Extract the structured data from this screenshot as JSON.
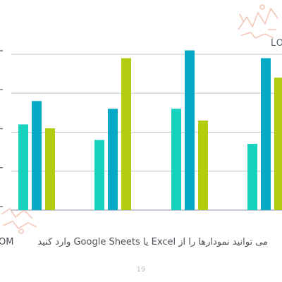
{
  "chart_data": {
    "type": "bar",
    "categories": [
      "",
      "",
      "",
      ""
    ],
    "series": [
      {
        "color": "#16d3c0",
        "values": [
          2.2,
          1.8,
          2.6,
          1.7
        ]
      },
      {
        "color": "#04a9c4",
        "values": [
          2.8,
          2.6,
          4.1,
          3.9
        ]
      },
      {
        "color": "#b3cc12",
        "values": [
          2.1,
          3.9,
          2.3,
          3.4
        ]
      }
    ],
    "ylim": [
      0,
      4
    ],
    "grid": true,
    "legend": "none"
  },
  "header_text": "LO",
  "caption": {
    "rtl_text": "می توانید نمودارها را از Excel یا Google Sheets وارد کنید",
    "left_fragment": "OM"
  },
  "page_number": "19",
  "colors": {
    "grid": "#bac6d6",
    "axis": "#9aa8ba",
    "watermark": "#f3c8b8"
  }
}
